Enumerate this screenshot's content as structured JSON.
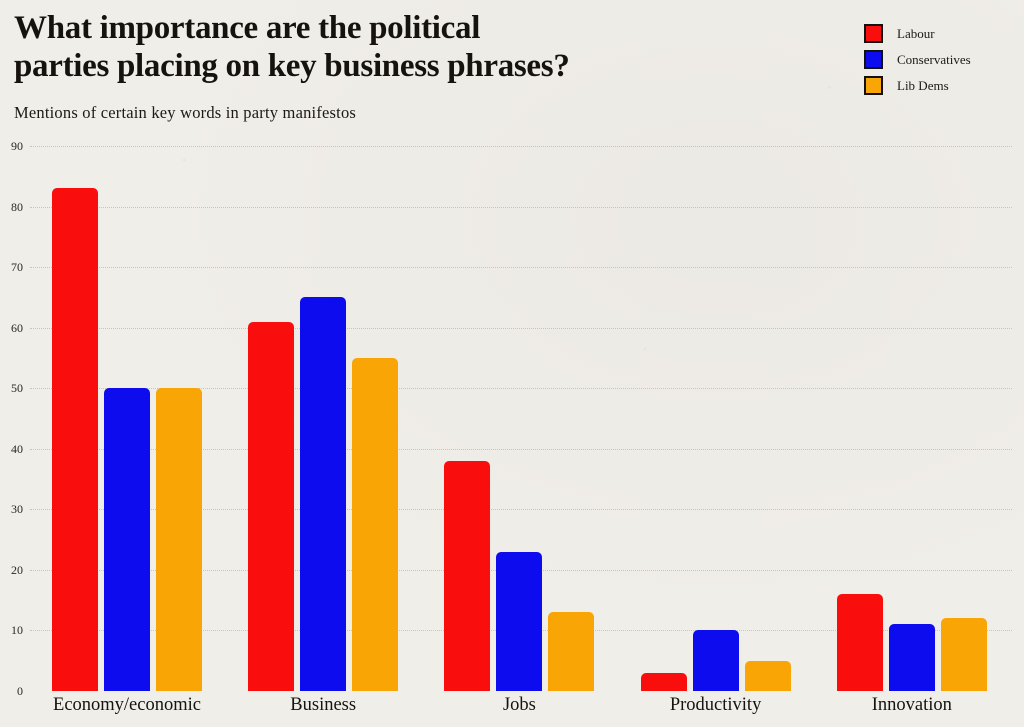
{
  "header": {
    "title_lines": [
      "What importance are the political",
      "parties placing on key business phrases?"
    ],
    "subtitle": "Mentions of certain key words in party manifestos"
  },
  "colors": {
    "background": "#f0eee9",
    "labour_red": "#f90d0d",
    "conservatives_blue": "#0d0cee",
    "libdems_orange": "#f8a505",
    "gridline": "#c7c4be",
    "text": "#16120e"
  },
  "chart_data": {
    "type": "bar",
    "title": "What importance are the political parties placing on key business phrases?",
    "subtitle": "Mentions of certain key words in party manifestos",
    "categories": [
      "Economy/economic",
      "Business",
      "Jobs",
      "Productivity",
      "Innovation"
    ],
    "series": [
      {
        "name": "Labour",
        "color": "#f90d0d",
        "values": [
          83,
          61,
          38,
          3,
          16
        ]
      },
      {
        "name": "Conservatives",
        "color": "#0d0cee",
        "values": [
          50,
          65,
          23,
          10,
          11
        ]
      },
      {
        "name": "Lib Dems",
        "color": "#f8a505",
        "values": [
          50,
          55,
          13,
          5,
          12
        ]
      }
    ],
    "xlabel": "",
    "ylabel": "",
    "ylim": [
      0,
      90
    ],
    "y_ticks": [
      0,
      10,
      20,
      30,
      40,
      50,
      60,
      70,
      80,
      90
    ],
    "grid": "horizontal-dotted",
    "legend_position": "top-right"
  }
}
